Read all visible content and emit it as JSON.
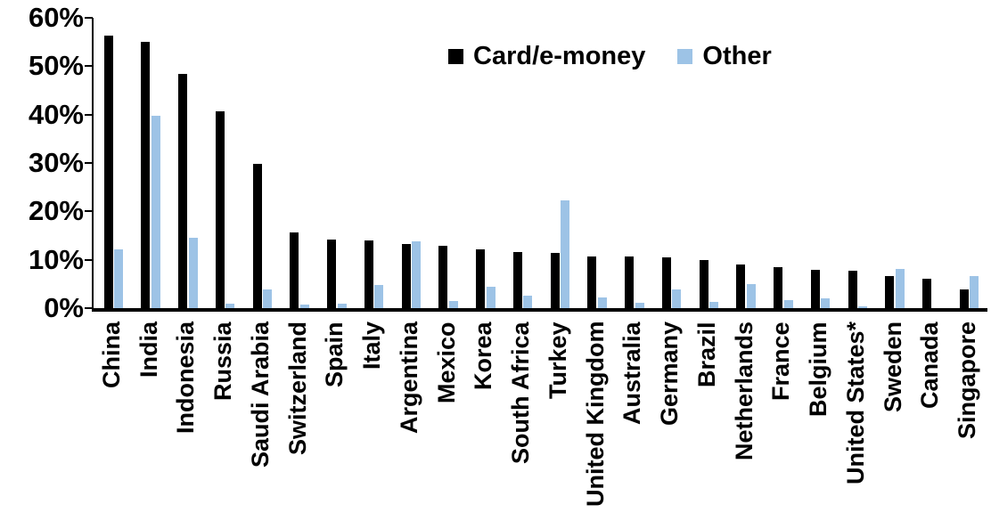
{
  "chart_data": {
    "type": "bar",
    "title": "",
    "xlabel": "",
    "ylabel": "",
    "ylim": [
      0,
      60
    ],
    "ytick_step": 10,
    "ytick_labels": [
      "0%",
      "10%",
      "20%",
      "30%",
      "40%",
      "50%",
      "60%"
    ],
    "grid": false,
    "legend_position": "top-center",
    "categories": [
      "China",
      "India",
      "Indonesia",
      "Russia",
      "Saudi Arabia",
      "Switzerland",
      "Spain",
      "Italy",
      "Argentina",
      "Mexico",
      "Korea",
      "South Africa",
      "Turkey",
      "United Kingdom",
      "Australia",
      "Germany",
      "Brazil",
      "Netherlands",
      "France",
      "Belgium",
      "United States*",
      "Sweden",
      "Canada",
      "Singapore"
    ],
    "series": [
      {
        "name": "Card/e-money",
        "color": "#000000",
        "values": [
          56.3,
          55.0,
          48.4,
          40.6,
          29.9,
          15.6,
          14.1,
          13.9,
          13.3,
          12.9,
          12.2,
          11.6,
          11.4,
          10.7,
          10.6,
          10.5,
          10.0,
          9.1,
          8.4,
          8.0,
          7.7,
          6.6,
          6.0,
          3.8
        ]
      },
      {
        "name": "Other",
        "color": "#9DC3E6",
        "values": [
          12.2,
          39.7,
          14.5,
          1.0,
          3.8,
          0.8,
          1.0,
          4.7,
          13.8,
          1.4,
          4.5,
          2.5,
          22.3,
          2.2,
          1.1,
          3.8,
          1.2,
          4.9,
          1.6,
          2.0,
          0.3,
          8.1,
          0.0,
          6.6
        ]
      }
    ]
  },
  "legend": {
    "items": [
      {
        "label": "Card/e-money",
        "color": "#000000"
      },
      {
        "label": "Other",
        "color": "#9DC3E6"
      }
    ]
  }
}
